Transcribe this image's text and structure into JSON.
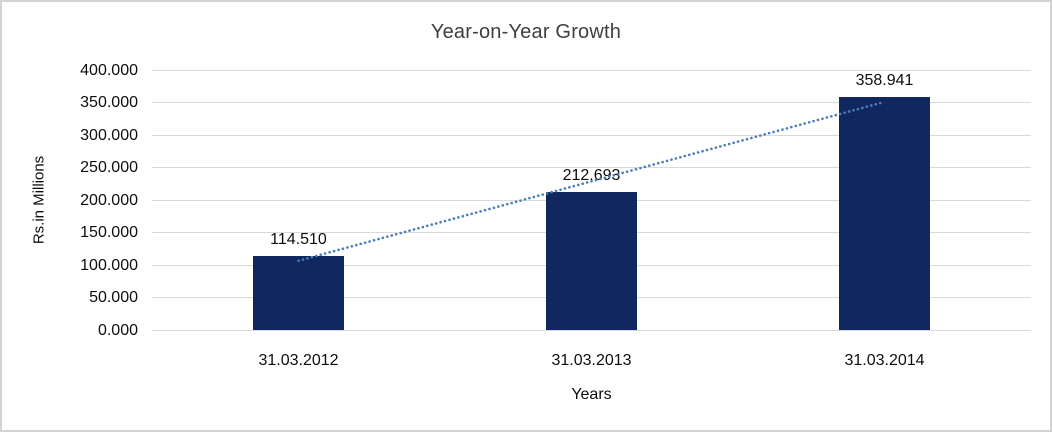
{
  "chart_data": {
    "type": "bar",
    "title": "Year-on-Year Growth",
    "xlabel": "Years",
    "ylabel": "Rs.in Millions",
    "categories": [
      "31.03.2012",
      "31.03.2013",
      "31.03.2014"
    ],
    "values": [
      114.51,
      212.693,
      358.941
    ],
    "value_labels": [
      "114.510",
      "212.693",
      "358.941"
    ],
    "ylim": [
      0,
      400
    ],
    "ytick_step": 50,
    "ytick_labels": [
      "0.000",
      "50.000",
      "100.000",
      "150.000",
      "200.000",
      "250.000",
      "300.000",
      "350.000",
      "400.000"
    ],
    "grid": true,
    "legend": "none",
    "trendline": {
      "type": "linear",
      "style": "dotted"
    },
    "colors": {
      "bar": "#112760",
      "trendline": "#4a7ebb",
      "gridline": "#d9d9d9",
      "frame_border": "#d3d3d3",
      "title_text": "#3f3f3f",
      "axis_text": "#0d0d0d"
    }
  }
}
